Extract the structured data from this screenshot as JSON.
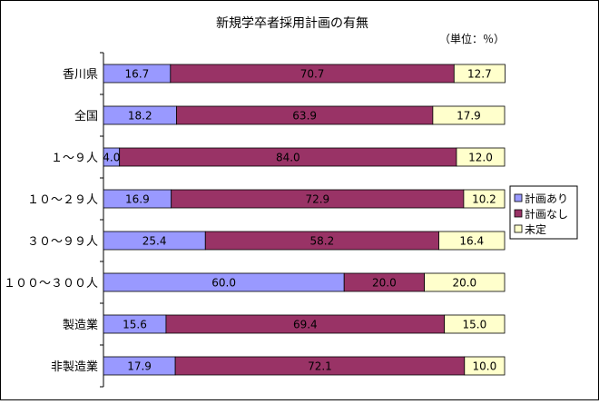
{
  "chart_data": {
    "type": "bar",
    "orientation": "horizontal",
    "stacked": "percent",
    "title": "新規学卒者採用計画の有無",
    "unit_note": "（単位：％）",
    "categories": [
      "香川県",
      "全国",
      "１～９人",
      "１０～２９人",
      "３０～９９人",
      "１００～３００人",
      "製造業",
      "非製造業"
    ],
    "series": [
      {
        "name": "計画あり",
        "color": "#9999ff",
        "values": [
          16.7,
          18.2,
          4.0,
          16.9,
          25.4,
          60.0,
          15.6,
          17.9
        ],
        "labels": [
          "16.7",
          "18.2",
          "4.0",
          "16.9",
          "25.4",
          "60.0",
          "15.6",
          "17.9"
        ]
      },
      {
        "name": "計画なし",
        "color": "#993366",
        "values": [
          70.7,
          63.9,
          84.0,
          72.9,
          58.2,
          20.0,
          69.4,
          72.1
        ],
        "labels": [
          "70.7",
          "63.9",
          "84.0",
          "72.9",
          "58.2",
          "20.0",
          "69.4",
          "72.1"
        ]
      },
      {
        "name": "未定",
        "color": "#ffffcc",
        "values": [
          12.7,
          17.9,
          12.0,
          10.2,
          16.4,
          20.0,
          15.0,
          10.0
        ],
        "labels": [
          "12.7",
          "17.9",
          "12.0",
          "10.2",
          "16.4",
          "20.0",
          "15.0",
          "10.0"
        ]
      }
    ],
    "xlim": [
      0,
      100
    ],
    "grid": false,
    "legend_position": "right"
  }
}
